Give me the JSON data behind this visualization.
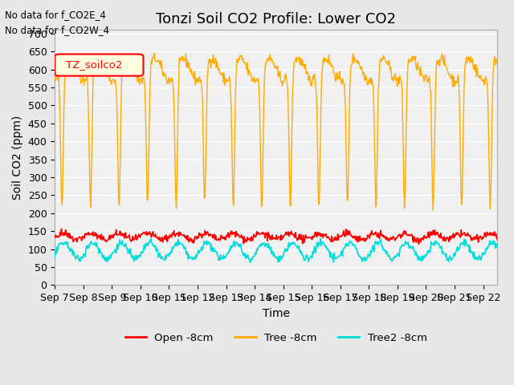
{
  "title": "Tonzi Soil CO2 Profile: Lower CO2",
  "ylabel": "Soil CO2 (ppm)",
  "xlabel": "Time",
  "annotations": [
    "No data for f_CO2E_4",
    "No data for f_CO2W_4"
  ],
  "legend_label": "TZ_soilco2",
  "series_labels": [
    "Open -8cm",
    "Tree -8cm",
    "Tree2 -8cm"
  ],
  "series_colors": [
    "#ff0000",
    "#ffaa00",
    "#00dddd"
  ],
  "ylim": [
    0,
    710
  ],
  "yticks": [
    0,
    50,
    100,
    150,
    200,
    250,
    300,
    350,
    400,
    450,
    500,
    550,
    600,
    650,
    700
  ],
  "background_color": "#e8e8e8",
  "plot_bg_color": "#f0f0f0",
  "grid_color": "#ffffff",
  "title_fontsize": 13,
  "label_fontsize": 10,
  "tick_fontsize": 9
}
